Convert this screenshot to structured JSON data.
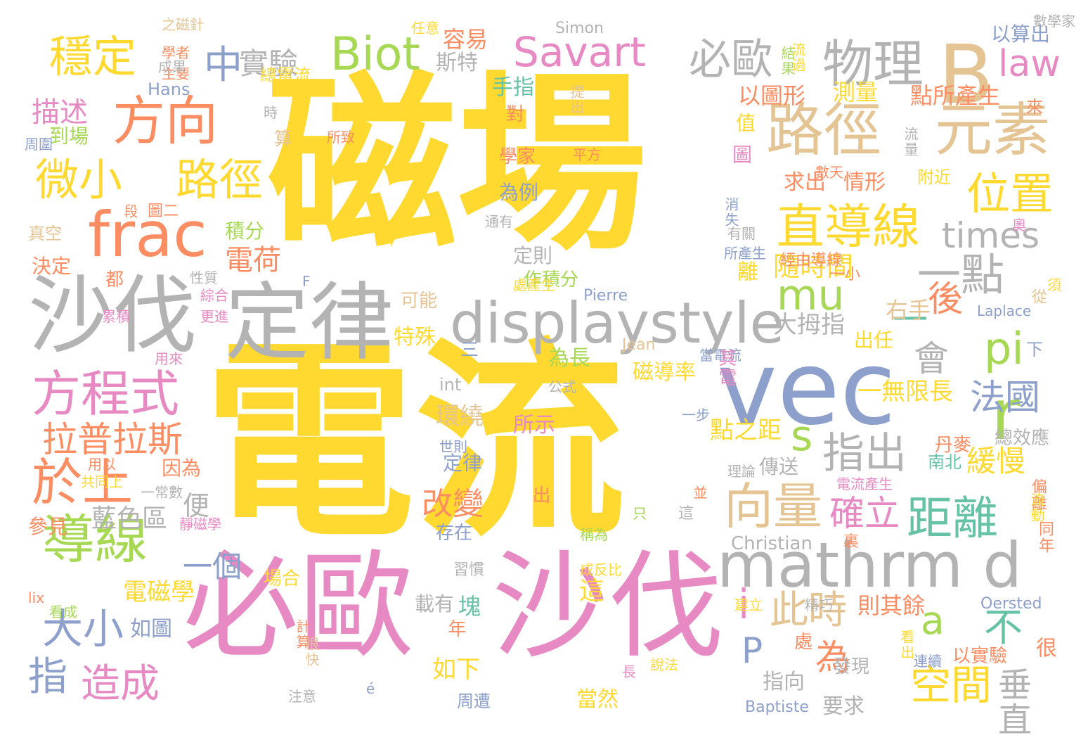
{
  "palette": {
    "yellow": "#ffd92f",
    "pink": "#e78ac3",
    "gray": "#b3b3b3",
    "orange": "#fc8d62",
    "blue": "#8da0cb",
    "green": "#a6d854",
    "tan": "#e5c494",
    "teal": "#66c2a5"
  },
  "words": [
    {
      "text": "電流",
      "color": "yellow"
    },
    {
      "text": "磁場",
      "color": "yellow"
    },
    {
      "text": "必歐",
      "color": "pink"
    },
    {
      "text": "沙伐",
      "color": "pink"
    },
    {
      "text": "vec",
      "color": "blue"
    },
    {
      "text": "沙伐",
      "color": "gray"
    },
    {
      "text": "定律",
      "color": "gray"
    },
    {
      "text": "displaystyle",
      "color": "gray"
    },
    {
      "text": "mathrm d",
      "color": "gray"
    },
    {
      "text": "路徑",
      "color": "tan"
    },
    {
      "text": "元素",
      "color": "tan"
    },
    {
      "text": "B",
      "color": "tan"
    },
    {
      "text": "law",
      "color": "pink"
    },
    {
      "text": "物理",
      "color": "gray"
    },
    {
      "text": "必歐",
      "color": "gray"
    },
    {
      "text": "Savart",
      "color": "pink"
    },
    {
      "text": "Biot",
      "color": "green"
    },
    {
      "text": "中",
      "color": "blue"
    },
    {
      "text": "實驗",
      "color": "gray"
    },
    {
      "text": "穩定",
      "color": "yellow"
    },
    {
      "text": "方向",
      "color": "orange"
    },
    {
      "text": "frac",
      "color": "orange"
    },
    {
      "text": "微小",
      "color": "yellow"
    },
    {
      "text": "路徑",
      "color": "yellow"
    },
    {
      "text": "直導線",
      "color": "yellow"
    },
    {
      "text": "mu",
      "color": "green"
    },
    {
      "text": "pi",
      "color": "green"
    },
    {
      "text": "times",
      "color": "gray"
    },
    {
      "text": "一點",
      "color": "gray"
    },
    {
      "text": "位置",
      "color": "yellow"
    },
    {
      "text": "方程式",
      "color": "pink"
    },
    {
      "text": "拉普拉斯",
      "color": "orange"
    },
    {
      "text": "於上",
      "color": "orange"
    },
    {
      "text": "導線",
      "color": "green"
    },
    {
      "text": "向量",
      "color": "tan"
    },
    {
      "text": "距離",
      "color": "teal"
    },
    {
      "text": "r",
      "color": "green"
    },
    {
      "text": "s",
      "color": "green"
    },
    {
      "text": "會",
      "color": "gray"
    },
    {
      "text": "法國",
      "color": "blue"
    },
    {
      "text": "指出",
      "color": "gray"
    },
    {
      "text": "確立",
      "color": "pink"
    },
    {
      "text": "後",
      "color": "orange"
    },
    {
      "text": "一",
      "color": "teal"
    },
    {
      "text": "大小",
      "color": "blue"
    },
    {
      "text": "指",
      "color": "blue"
    },
    {
      "text": "造成",
      "color": "pink"
    },
    {
      "text": "i",
      "color": "pink"
    },
    {
      "text": "a",
      "color": "green"
    },
    {
      "text": "不",
      "color": "teal"
    },
    {
      "text": "為",
      "color": "orange"
    },
    {
      "text": "空間",
      "color": "yellow"
    },
    {
      "text": "P",
      "color": "blue"
    },
    {
      "text": "此時",
      "color": "tan"
    },
    {
      "text": "描述",
      "color": "pink"
    },
    {
      "text": "電荷",
      "color": "orange"
    },
    {
      "text": "隨時間",
      "color": "yellow"
    },
    {
      "text": "緩慢",
      "color": "yellow"
    },
    {
      "text": "改變",
      "color": "orange"
    },
    {
      "text": "一個",
      "color": "blue"
    },
    {
      "text": "便",
      "color": "gray"
    },
    {
      "text": "藍色區",
      "color": "gray"
    },
    {
      "text": "電磁學",
      "color": "yellow"
    },
    {
      "text": "如圖",
      "color": "blue"
    },
    {
      "text": "則其餘",
      "color": "orange"
    },
    {
      "text": "Oersted",
      "color": "blue"
    },
    {
      "text": "大拇指",
      "color": "gray"
    },
    {
      "text": "右手",
      "color": "tan"
    },
    {
      "text": "測量",
      "color": "yellow"
    },
    {
      "text": "點所產生",
      "color": "orange"
    },
    {
      "text": "以圖形",
      "color": "orange"
    },
    {
      "text": "求出",
      "color": "orange"
    },
    {
      "text": "情形",
      "color": "orange"
    },
    {
      "text": "容易",
      "color": "orange"
    },
    {
      "text": "斯特",
      "color": "gray"
    },
    {
      "text": "手指",
      "color": "teal"
    },
    {
      "text": "總電流",
      "color": "yellow"
    },
    {
      "text": "Hans",
      "color": "blue"
    },
    {
      "text": "Simon",
      "color": "gray"
    },
    {
      "text": "以算出",
      "color": "blue"
    },
    {
      "text": "到場",
      "color": "green"
    },
    {
      "text": "積分",
      "color": "green"
    },
    {
      "text": "定則",
      "color": "gray"
    },
    {
      "text": "作積分",
      "color": "green"
    },
    {
      "text": "為例",
      "color": "blue"
    },
    {
      "text": "學家",
      "color": "orange"
    },
    {
      "text": "為長",
      "color": "green"
    },
    {
      "text": "特殊",
      "color": "yellow"
    },
    {
      "text": "磁導率",
      "color": "yellow"
    },
    {
      "text": "點之距",
      "color": "yellow"
    },
    {
      "text": "出任",
      "color": "yellow"
    },
    {
      "text": "一無限長",
      "color": "yellow"
    },
    {
      "text": "環繞",
      "color": "tan"
    },
    {
      "text": "所示",
      "color": "pink"
    },
    {
      "text": "傳送",
      "color": "gray"
    },
    {
      "text": "丹麥",
      "color": "orange"
    },
    {
      "text": "南北",
      "color": "teal"
    },
    {
      "text": "總效應",
      "color": "gray"
    },
    {
      "text": "定律",
      "color": "blue"
    },
    {
      "text": "存在",
      "color": "blue"
    },
    {
      "text": "Christian",
      "color": "gray"
    },
    {
      "text": "因為",
      "color": "orange"
    },
    {
      "text": "參見",
      "color": "orange"
    },
    {
      "text": "場合",
      "color": "yellow"
    },
    {
      "text": "載有",
      "color": "gray"
    },
    {
      "text": "這",
      "color": "yellow"
    },
    {
      "text": "塊",
      "color": "teal"
    },
    {
      "text": "如下",
      "color": "yellow"
    },
    {
      "text": "當然",
      "color": "yellow"
    },
    {
      "text": "指向",
      "color": "gray"
    },
    {
      "text": "要求",
      "color": "gray"
    },
    {
      "text": "垂直",
      "color": "gray"
    },
    {
      "text": "發現",
      "color": "gray"
    },
    {
      "text": "以實驗",
      "color": "orange"
    },
    {
      "text": "很",
      "color": "orange"
    },
    {
      "text": "周遭",
      "color": "blue"
    },
    {
      "text": "Baptiste",
      "color": "blue"
    },
    {
      "text": "決定",
      "color": "orange"
    },
    {
      "text": "真空",
      "color": "tan"
    },
    {
      "text": "可能",
      "color": "tan"
    },
    {
      "text": "int",
      "color": "gray"
    },
    {
      "text": "Jean",
      "color": "tan"
    },
    {
      "text": "Pierre",
      "color": "blue"
    },
    {
      "text": "Laplace",
      "color": "blue"
    },
    {
      "text": "年",
      "color": "orange"
    },
    {
      "text": "出",
      "color": "orange"
    },
    {
      "text": "處",
      "color": "orange"
    },
    {
      "text": "數學家",
      "color": "gray"
    },
    {
      "text": "結果",
      "color": "green"
    },
    {
      "text": "流過",
      "color": "yellow"
    },
    {
      "text": "之磁針",
      "color": "tan"
    },
    {
      "text": "任意",
      "color": "yellow"
    },
    {
      "text": "拓展",
      "color": "yellow"
    },
    {
      "text": "提出",
      "color": "tan"
    },
    {
      "text": "來",
      "color": "orange"
    },
    {
      "text": "值",
      "color": "yellow"
    },
    {
      "text": "圖",
      "color": "pink"
    },
    {
      "text": "數天",
      "color": "orange"
    },
    {
      "text": "附近",
      "color": "yellow"
    },
    {
      "text": "算",
      "color": "tan"
    },
    {
      "text": "對",
      "color": "orange"
    },
    {
      "text": "平方",
      "color": "orange"
    },
    {
      "text": "流量",
      "color": "gray"
    },
    {
      "text": "所致",
      "color": "orange"
    },
    {
      "text": "主要",
      "color": "orange"
    },
    {
      "text": "學者",
      "color": "orange"
    },
    {
      "text": "成果",
      "color": "gray"
    },
    {
      "text": "周圍",
      "color": "blue"
    },
    {
      "text": "時",
      "color": "gray"
    },
    {
      "text": "圖二",
      "color": "orange"
    },
    {
      "text": "段",
      "color": "orange"
    },
    {
      "text": "都",
      "color": "orange"
    },
    {
      "text": "性質",
      "color": "gray"
    },
    {
      "text": "F",
      "color": "blue"
    },
    {
      "text": "綜合",
      "color": "pink"
    },
    {
      "text": "更進",
      "color": "pink"
    },
    {
      "text": "累積",
      "color": "pink"
    },
    {
      "text": "用來",
      "color": "pink"
    },
    {
      "text": "三",
      "color": "blue"
    },
    {
      "text": "從",
      "color": "tan"
    },
    {
      "text": "下",
      "color": "blue"
    },
    {
      "text": "偏離",
      "color": "orange"
    },
    {
      "text": "須",
      "color": "yellow"
    },
    {
      "text": "消失",
      "color": "blue"
    },
    {
      "text": "有關",
      "color": "gray"
    },
    {
      "text": "所產生",
      "color": "blue"
    },
    {
      "text": "經由導線",
      "color": "orange"
    },
    {
      "text": "離",
      "color": "yellow"
    },
    {
      "text": "一小",
      "color": "orange"
    },
    {
      "text": "處產生",
      "color": "yellow"
    },
    {
      "text": "通有",
      "color": "gray"
    },
    {
      "text": "共同上",
      "color": "yellow"
    },
    {
      "text": "用以",
      "color": "orange"
    },
    {
      "text": "一常數",
      "color": "gray"
    },
    {
      "text": "世則",
      "color": "blue"
    },
    {
      "text": "理論",
      "color": "gray"
    },
    {
      "text": "電流產生",
      "color": "pink"
    },
    {
      "text": "流動",
      "color": "yellow"
    },
    {
      "text": "並",
      "color": "orange"
    },
    {
      "text": "靜磁學",
      "color": "pink"
    },
    {
      "text": "只",
      "color": "green"
    },
    {
      "text": "這",
      "color": "gray"
    },
    {
      "text": "同年",
      "color": "orange"
    },
    {
      "text": "稱為",
      "color": "green"
    },
    {
      "text": "裏",
      "color": "orange"
    },
    {
      "text": "成反比",
      "color": "yellow"
    },
    {
      "text": "習慣",
      "color": "gray"
    },
    {
      "text": "lix",
      "color": "orange"
    },
    {
      "text": "看成",
      "color": "green"
    },
    {
      "text": "計算",
      "color": "orange"
    },
    {
      "text": "很快",
      "color": "tan"
    },
    {
      "text": "長",
      "color": "pink"
    },
    {
      "text": "說法",
      "color": "yellow"
    },
    {
      "text": "注意",
      "color": "gray"
    },
    {
      "text": "建立",
      "color": "yellow"
    },
    {
      "text": "精巧",
      "color": "gray"
    },
    {
      "text": "看出",
      "color": "yellow"
    },
    {
      "text": "連續",
      "color": "blue"
    },
    {
      "text": "一步",
      "color": "blue"
    },
    {
      "text": "公式",
      "color": "gray"
    },
    {
      "text": "當電流",
      "color": "blue"
    },
    {
      "text": "其電",
      "color": "pink"
    },
    {
      "text": "奧",
      "color": "pink"
    },
    {
      "text": "é",
      "color": "blue"
    }
  ]
}
